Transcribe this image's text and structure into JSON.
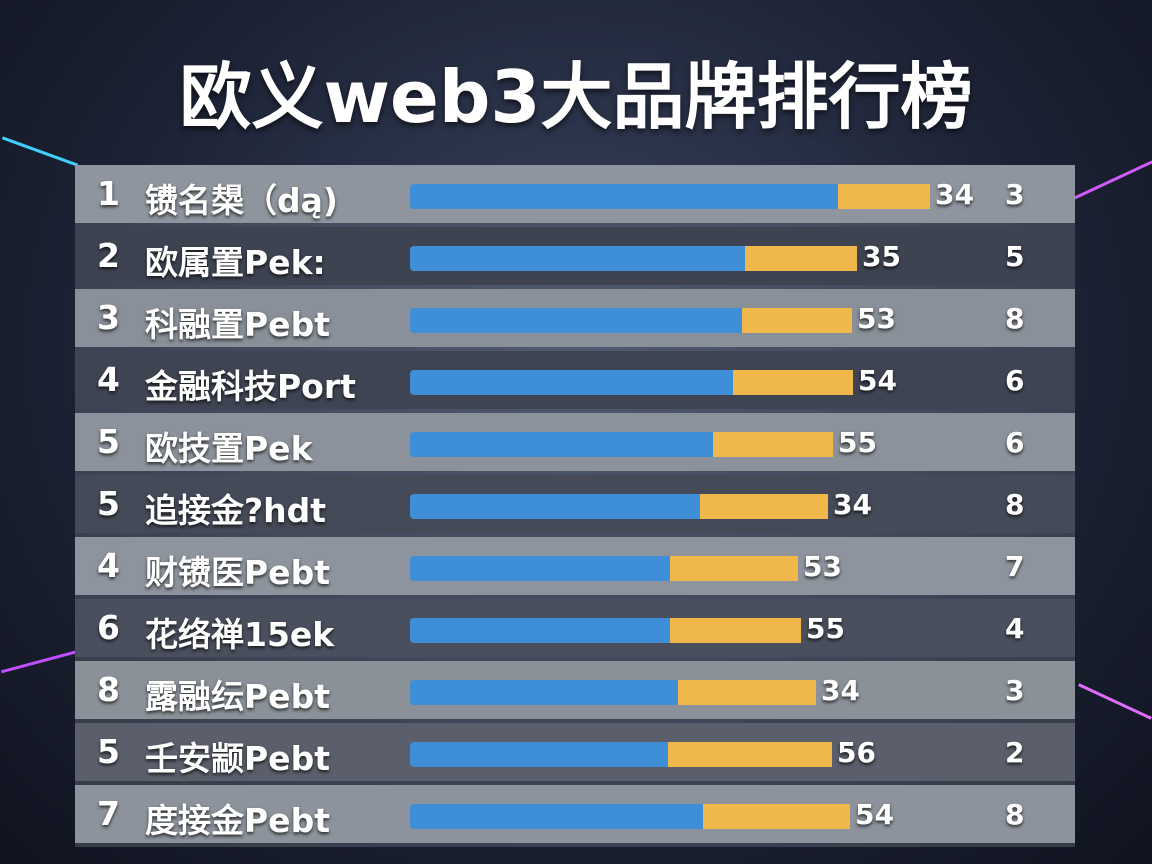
{
  "header": {
    "title": "欧义web3大品牌排行榜"
  },
  "table": {
    "rows": [
      {
        "rank": 1,
        "name": "镄名槼（dą)",
        "score": 34,
        "count": 3
      },
      {
        "rank": 2,
        "name": "欧属置Pek:",
        "score": 35,
        "count": 5
      },
      {
        "rank": 3,
        "name": "科融置Pebt",
        "score": 53,
        "count": 8
      },
      {
        "rank": 4,
        "name": "金融科技Port",
        "score": 54,
        "count": 6
      },
      {
        "rank": 5,
        "name": "欧技置Pek",
        "score": 55,
        "count": 6
      },
      {
        "rank": 5,
        "name": "追接金?hdt",
        "score": 34,
        "count": 8
      },
      {
        "rank": 4,
        "name": "财镄医Pebt",
        "score": 53,
        "count": 7
      },
      {
        "rank": 6,
        "name": "花络禅15ek",
        "score": 55,
        "count": 4
      },
      {
        "rank": 8,
        "name": "露融纭Pebt",
        "score": 34,
        "count": 3
      },
      {
        "rank": 5,
        "name": "壬安颛Pebt",
        "score": 56,
        "count": 2
      },
      {
        "rank": 7,
        "name": "度接金Pebt",
        "score": 54,
        "count": 8
      }
    ]
  }
}
